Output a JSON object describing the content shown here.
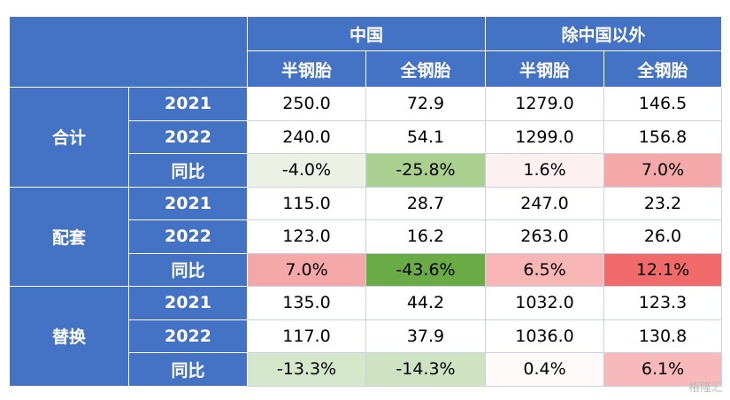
{
  "header": {
    "groups": [
      "中国",
      "除中国以外"
    ],
    "columns": [
      "半钢胎",
      "全钢胎",
      "半钢胎",
      "全钢胎"
    ]
  },
  "sections": [
    {
      "label": "合计",
      "rows": [
        {
          "label": "2021",
          "cells": [
            "250.0",
            "72.9",
            "1279.0",
            "146.5"
          ]
        },
        {
          "label": "2022",
          "cells": [
            "240.0",
            "54.1",
            "1299.0",
            "156.8"
          ]
        },
        {
          "label": "同比",
          "cells": [
            "-4.0%",
            "-25.8%",
            "1.6%",
            "7.0%"
          ],
          "colors": [
            "#ebf1e5",
            "#a9d08e",
            "#fcf0f0",
            "#f5a8a8"
          ]
        }
      ]
    },
    {
      "label": "配套",
      "rows": [
        {
          "label": "2021",
          "cells": [
            "115.0",
            "28.7",
            "247.0",
            "23.2"
          ]
        },
        {
          "label": "2022",
          "cells": [
            "123.0",
            "16.2",
            "263.0",
            "26.0"
          ]
        },
        {
          "label": "同比",
          "cells": [
            "7.0%",
            "-43.6%",
            "6.5%",
            "12.1%"
          ],
          "colors": [
            "#f5a8a8",
            "#6aab45",
            "#f7b5b5",
            "#f06a6a"
          ]
        }
      ]
    },
    {
      "label": "替换",
      "rows": [
        {
          "label": "2021",
          "cells": [
            "135.0",
            "44.2",
            "1032.0",
            "123.3"
          ]
        },
        {
          "label": "2022",
          "cells": [
            "117.0",
            "37.9",
            "1036.0",
            "130.8"
          ]
        },
        {
          "label": "同比",
          "cells": [
            "-13.3%",
            "-14.3%",
            "0.4%",
            "6.1%"
          ],
          "colors": [
            "#d4e7ca",
            "#cde3c1",
            "#fffafa",
            "#f7b9b9"
          ]
        }
      ]
    }
  ],
  "watermark": "格隆汇"
}
